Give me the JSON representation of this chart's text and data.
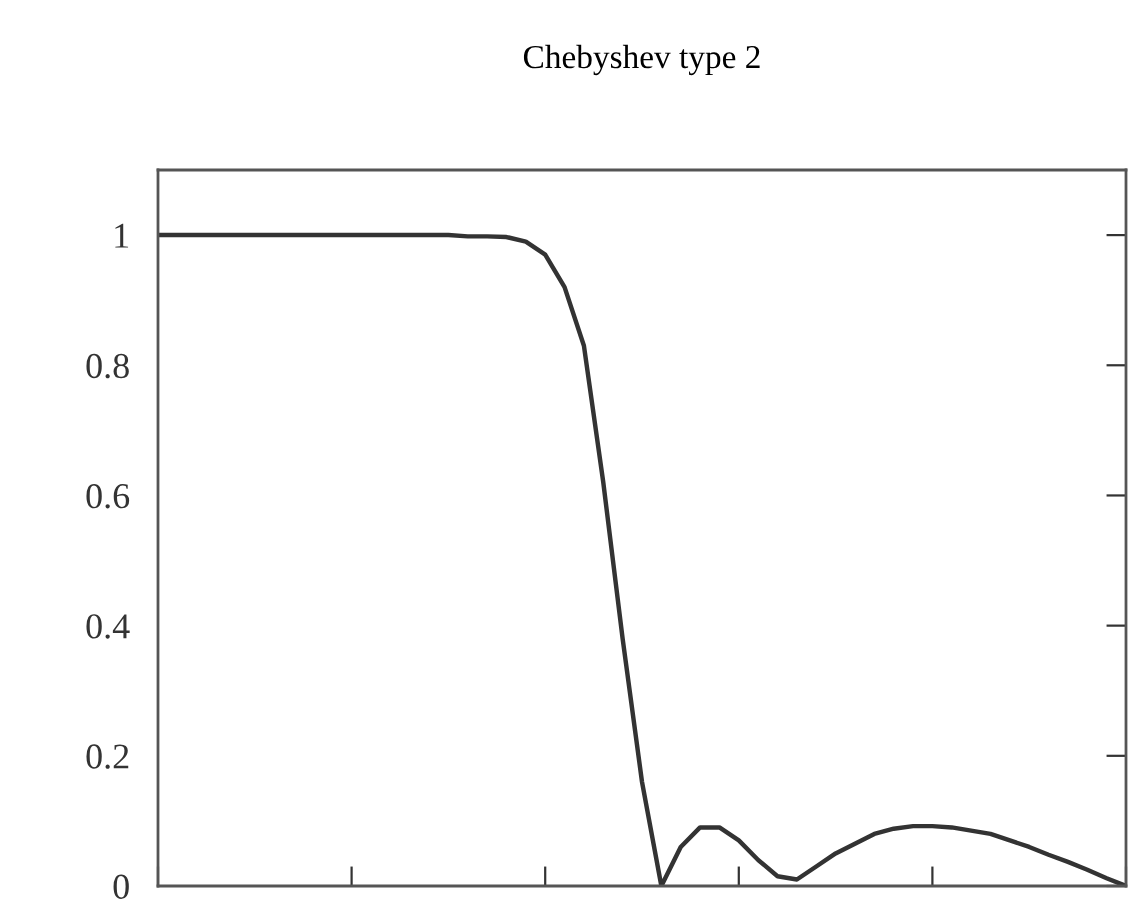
{
  "chart_data": {
    "type": "line",
    "title": "Chebyshev type 2",
    "categories": [
      null,
      null,
      null,
      null,
      null,
      null,
      null,
      null,
      null,
      null,
      null,
      null,
      null,
      null,
      null,
      null,
      null,
      null,
      null,
      null,
      null,
      null,
      null,
      null,
      null,
      null,
      null,
      null,
      null,
      null,
      null,
      null,
      null,
      null,
      null,
      null,
      null,
      null,
      null,
      null,
      null,
      null,
      null,
      null,
      null,
      null,
      null,
      null,
      null,
      null,
      null
    ],
    "series": [
      {
        "color": "#333333",
        "values": [
          1,
          1,
          1,
          1,
          1,
          1,
          1,
          1,
          1,
          1,
          1,
          1,
          1,
          1,
          1,
          1,
          0.998,
          0.998,
          0.997,
          0.99,
          0.97,
          0.92,
          0.83,
          0.62,
          0.38,
          0.16,
          0.0,
          0.06,
          0.09,
          0.09,
          0.07,
          0.04,
          0.015,
          0.01,
          0.03,
          0.05,
          0.065,
          0.08,
          0.088,
          0.092,
          0.092,
          0.09,
          0.085,
          0.08,
          0.07,
          0.06,
          0.048,
          0.037,
          0.025,
          0.012,
          0.0
        ]
      }
    ],
    "ylim": [
      0,
      1.1
    ],
    "yticks": [
      0,
      0.2,
      0.4,
      0.6,
      0.8,
      1
    ],
    "tick_labels": "y"
  }
}
